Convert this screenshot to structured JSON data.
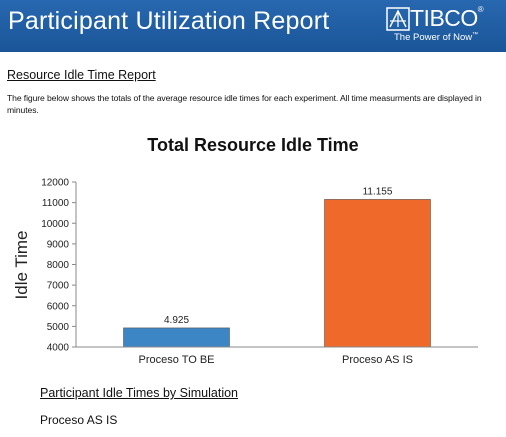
{
  "header": {
    "title": "Participant Utilization Report",
    "logo_text": "TIBCO",
    "logo_tagline": "The Power of Now",
    "logo_trademark": "™",
    "logo_registered": "®",
    "logo_icon": "tibco-mark-icon",
    "background_color": "#1f5fa6"
  },
  "section": {
    "title": "Resource Idle Time Report",
    "intro": "The figure below shows the totals of the average resource idle times for each experiment. All time measurments are displayed in minutes."
  },
  "chart_data": {
    "type": "bar",
    "title": "Total Resource Idle Time",
    "xlabel": "",
    "ylabel": "Idle Time",
    "categories": [
      "Proceso TO BE",
      "Proceso AS IS"
    ],
    "values": [
      4925,
      11155
    ],
    "value_labels": [
      "4.925",
      "11.155"
    ],
    "bar_colors": [
      "#3d86c6",
      "#ef6a2a"
    ],
    "ylim": [
      4000,
      12000
    ],
    "yticks": [
      4000,
      5000,
      6000,
      7000,
      8000,
      9000,
      10000,
      11000,
      12000
    ],
    "grid": false,
    "legend": "none"
  },
  "subsection": {
    "title": "Participant Idle Times by Simulation",
    "scenario": "Proceso AS IS"
  }
}
